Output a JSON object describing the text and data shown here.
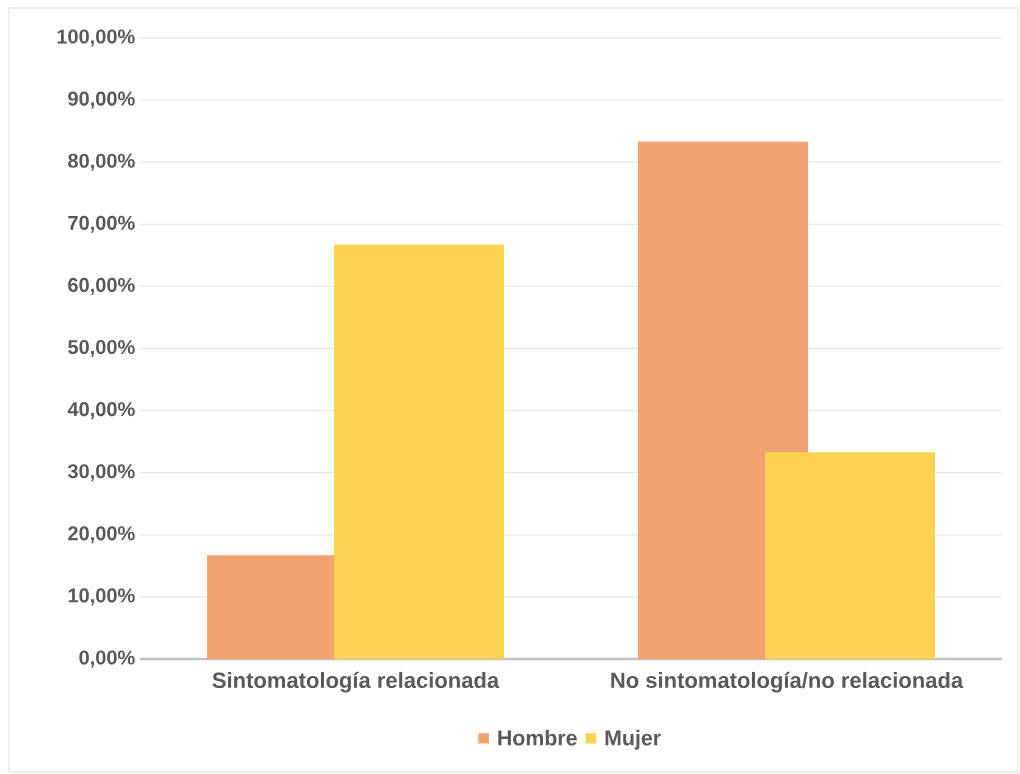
{
  "chart_data": {
    "type": "bar",
    "categories": [
      "Sintomatología relacionada",
      "No sintomatología/no relacionada"
    ],
    "series": [
      {
        "name": "Hombre",
        "color": "#f0a36e",
        "values": [
          16.7,
          83.3
        ]
      },
      {
        "name": "Mujer",
        "color": "#fdd24f",
        "values": [
          66.7,
          33.3
        ]
      }
    ],
    "ylim": [
      0,
      100
    ],
    "yticks": [
      {
        "value": 0,
        "label": "0,00%"
      },
      {
        "value": 10,
        "label": "10,00%"
      },
      {
        "value": 20,
        "label": "20,00%"
      },
      {
        "value": 30,
        "label": "30,00%"
      },
      {
        "value": 40,
        "label": "40,00%"
      },
      {
        "value": 50,
        "label": "50,00%"
      },
      {
        "value": 60,
        "label": "60,00%"
      },
      {
        "value": 70,
        "label": "70,00%"
      },
      {
        "value": 80,
        "label": "80,00%"
      },
      {
        "value": 90,
        "label": "90,00%"
      },
      {
        "value": 100,
        "label": "100,00%"
      }
    ],
    "grid": "y",
    "legend": "bottom"
  }
}
